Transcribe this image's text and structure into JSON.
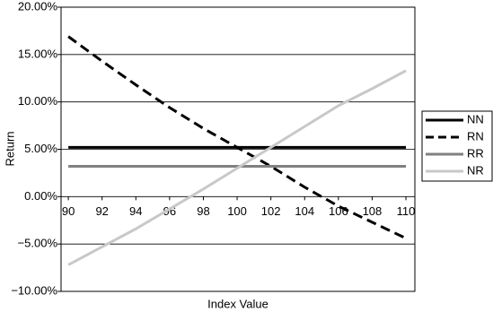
{
  "chart_data": {
    "type": "line",
    "y_label": "Return",
    "x_label": "Index Value",
    "x": [
      90,
      92,
      94,
      96,
      98,
      100,
      102,
      104,
      106,
      108,
      110
    ],
    "xlim": [
      89.57,
      110.53
    ],
    "xticks": [
      90,
      92,
      94,
      96,
      98,
      100,
      102,
      104,
      106,
      108,
      110
    ],
    "ylim": [
      -10,
      20
    ],
    "yticks": [
      {
        "value": -10,
        "label": "−10.00%"
      },
      {
        "value": -5,
        "label": "−5.00%"
      },
      {
        "value": 0,
        "label": "0.00%"
      },
      {
        "value": 5,
        "label": "5.00%"
      },
      {
        "value": 10,
        "label": "10.00%"
      },
      {
        "value": 15,
        "label": "15.00%"
      },
      {
        "value": 20,
        "label": "20.00%"
      }
    ],
    "grid": true,
    "legend": "right",
    "series": [
      {
        "name": "NN",
        "color": "#000000",
        "dashed": false,
        "values": [
          5.2,
          5.2,
          5.2,
          5.2,
          5.2,
          5.2,
          5.2,
          5.2,
          5.2,
          5.2,
          5.2
        ]
      },
      {
        "name": "RN",
        "color": "#000000",
        "dashed": true,
        "values": [
          16.9,
          14.3,
          11.8,
          9.4,
          7.2,
          5.2,
          3.2,
          1.0,
          -1.0,
          -2.7,
          -4.4
        ]
      },
      {
        "name": "RR",
        "color": "#808080",
        "dashed": false,
        "values": [
          3.2,
          3.2,
          3.2,
          3.2,
          3.2,
          3.2,
          3.2,
          3.2,
          3.2,
          3.2,
          3.2
        ]
      },
      {
        "name": "NR",
        "color": "#c8c8c8",
        "dashed": false,
        "values": [
          -7.2,
          -5.3,
          -3.4,
          -1.3,
          0.8,
          3.0,
          5.2,
          7.4,
          9.6,
          11.4,
          13.3
        ]
      }
    ]
  }
}
